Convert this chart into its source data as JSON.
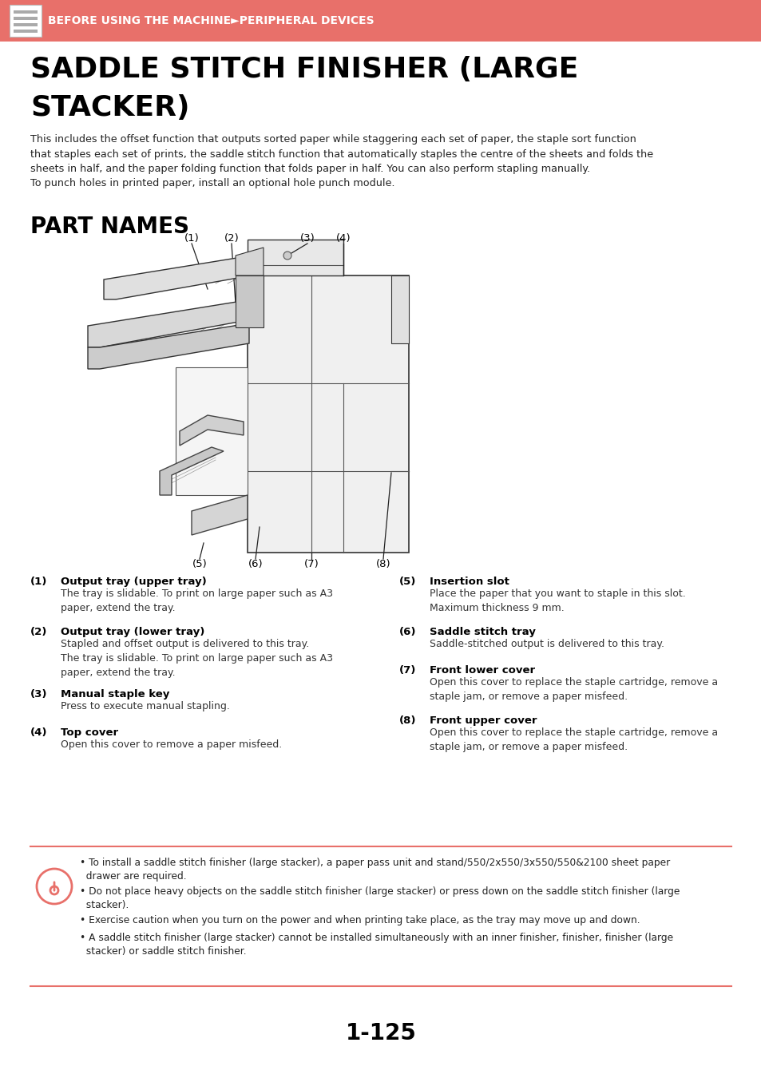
{
  "header_bg_color": "#E8706A",
  "header_text": "BEFORE USING THE MACHINE►PERIPHERAL DEVICES",
  "header_text_color": "#FFFFFF",
  "main_title_line1": "SADDLE STITCH FINISHER (LARGE",
  "main_title_line2": "STACKER)",
  "main_title_color": "#000000",
  "intro_text": "This includes the offset function that outputs sorted paper while staggering each set of paper, the staple sort function\nthat staples each set of prints, the saddle stitch function that automatically staples the centre of the sheets and folds the\nsheets in half, and the paper folding function that folds paper in half. You can also perform stapling manually.\nTo punch holes in printed paper, install an optional hole punch module.",
  "section_title": "PART NAMES",
  "parts": [
    {
      "num": "(1)",
      "title": "Output tray (upper tray)",
      "desc": "The tray is slidable. To print on large paper such as A3\npaper, extend the tray."
    },
    {
      "num": "(2)",
      "title": "Output tray (lower tray)",
      "desc": "Stapled and offset output is delivered to this tray.\nThe tray is slidable. To print on large paper such as A3\npaper, extend the tray."
    },
    {
      "num": "(3)",
      "title": "Manual staple key",
      "desc": "Press to execute manual stapling."
    },
    {
      "num": "(4)",
      "title": "Top cover",
      "desc": "Open this cover to remove a paper misfeed."
    },
    {
      "num": "(5)",
      "title": "Insertion slot",
      "desc": "Place the paper that you want to staple in this slot.\nMaximum thickness 9 mm."
    },
    {
      "num": "(6)",
      "title": "Saddle stitch tray",
      "desc": "Saddle-stitched output is delivered to this tray."
    },
    {
      "num": "(7)",
      "title": "Front lower cover",
      "desc": "Open this cover to replace the staple cartridge, remove a\nstaple jam, or remove a paper misfeed."
    },
    {
      "num": "(8)",
      "title": "Front upper cover",
      "desc": "Open this cover to replace the staple cartridge, remove a\nstaple jam, or remove a paper misfeed."
    }
  ],
  "note_bg_color": "#FFFFFF",
  "note_border_color": "#E8706A",
  "note_icon_color": "#E8706A",
  "notes": [
    "• To install a saddle stitch finisher (large stacker), a paper pass unit and stand/550/2x550/3x550/550&2100 sheet paper\n  drawer are required.",
    "• Do not place heavy objects on the saddle stitch finisher (large stacker) or press down on the saddle stitch finisher (large\n  stacker).",
    "• Exercise caution when you turn on the power and when printing take place, as the tray may move up and down.",
    "• A saddle stitch finisher (large stacker) cannot be installed simultaneously with an inner finisher, finisher, finisher (large\n  stacker) or saddle stitch finisher."
  ],
  "page_number": "1-125",
  "footer_line_color": "#E8706A",
  "bg_color": "#FFFFFF"
}
